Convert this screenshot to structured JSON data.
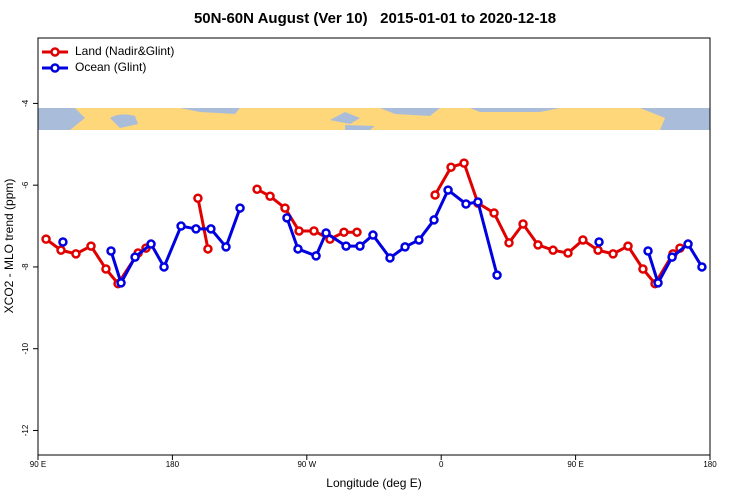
{
  "chart_data": {
    "type": "line",
    "title": "50N-60N August (Ver 10)   2015-01-01 to 2020-12-18",
    "xlabel": "Longitude (deg E)",
    "ylabel": "XCO2 - MLO trend (ppm)",
    "xlim": [
      90,
      540
    ],
    "xticks": [
      {
        "value": 90,
        "label": "90 E"
      },
      {
        "value": 180,
        "label": "180"
      },
      {
        "value": 270,
        "label": "90 W"
      },
      {
        "value": 360,
        "label": "0"
      },
      {
        "value": 450,
        "label": "90 E"
      },
      {
        "value": 540,
        "label": "180"
      }
    ],
    "ylim": [
      -12.6,
      -2.4
    ],
    "yticks": [
      -4,
      -6,
      -8,
      -10,
      -12
    ],
    "legend": "upper left",
    "series": [
      {
        "name": "Land (Nadir&Glint)",
        "color": "#e00000",
        "x": [
          95.4,
          105.4,
          115.4,
          125.5,
          135.5,
          143.6,
          157,
          162.3,
          null,
          197.1,
          203.8,
          null,
          236.7,
          245.4,
          255.4,
          264.8,
          274.8,
          285.5,
          294.9,
          303.6,
          null,
          355.9,
          366.6,
          375.3,
          384.6,
          395.4,
          405.4,
          414.8,
          424.8,
          434.9,
          444.9,
          454.9,
          465.0,
          475.1,
          485.1,
          495.1,
          503.2,
          515.2,
          519.9
        ],
        "values": [
          -7.32,
          -7.59,
          -7.68,
          -7.49,
          -8.05,
          -8.41,
          -7.66,
          -7.54,
          null,
          -6.32,
          -7.56,
          null,
          -6.1,
          -6.27,
          -6.56,
          -7.12,
          -7.12,
          -7.32,
          -7.15,
          -7.15,
          null,
          -6.24,
          -5.56,
          -5.46,
          -6.44,
          -6.68,
          -7.41,
          -6.95,
          -7.46,
          -7.59,
          -7.66,
          -7.34,
          -7.59,
          -7.68,
          -7.49,
          -8.05,
          -8.41,
          -7.68,
          -7.54
        ]
      },
      {
        "name": "Ocean (Glint)",
        "color": "#0000e0",
        "x": [
          106.7,
          null,
          138.9,
          145.6,
          155,
          165.7,
          174.4,
          185.8,
          195.8,
          205.8,
          215.9,
          225.3,
          null,
          256.7,
          264.1,
          276.2,
          282.9,
          296.3,
          305.6,
          314.3,
          325.7,
          335.8,
          345.1,
          355.2,
          364.6,
          376.6,
          384.6,
          397.4,
          null,
          465.7,
          null,
          498.5,
          505.2,
          514.6,
          525.3,
          534.6
        ],
        "values": [
          -7.39,
          null,
          -7.61,
          -8.39,
          -7.76,
          -7.44,
          -8.0,
          -7.0,
          -7.07,
          -7.07,
          -7.51,
          -6.56,
          null,
          -6.8,
          -7.56,
          -7.73,
          -7.17,
          -7.49,
          -7.49,
          -7.22,
          -7.78,
          -7.51,
          -7.34,
          -6.85,
          -6.12,
          -6.46,
          -6.41,
          -8.2,
          null,
          -7.39,
          null,
          -7.61,
          -8.39,
          -7.76,
          -7.44,
          -8.0
        ]
      }
    ]
  }
}
